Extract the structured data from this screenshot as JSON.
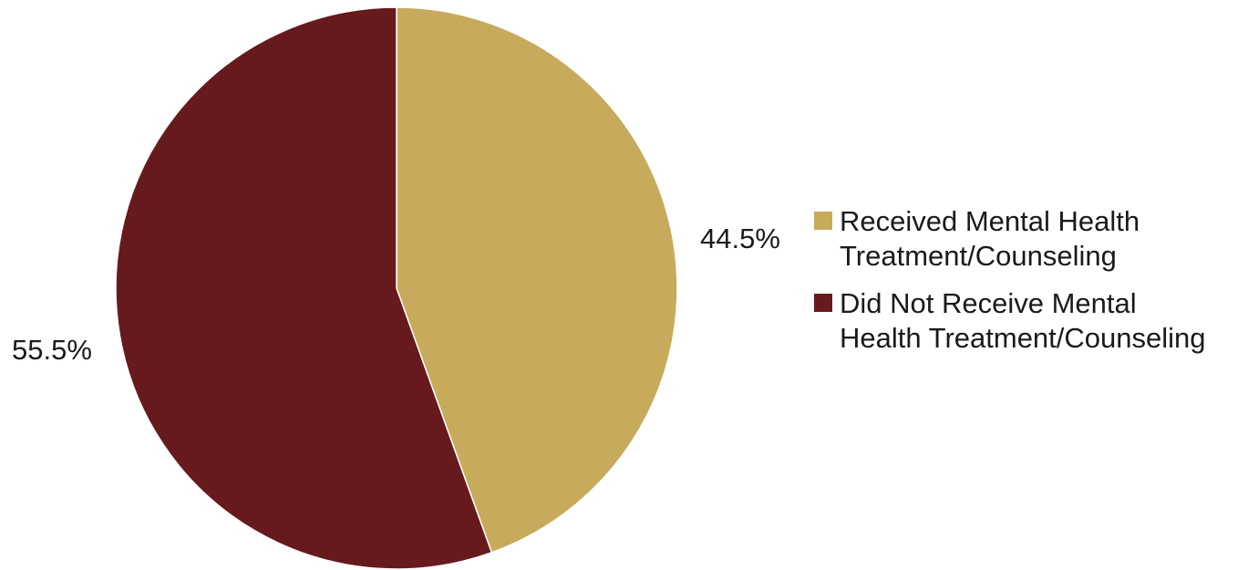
{
  "chart_data": {
    "type": "pie",
    "title": "",
    "slices": [
      {
        "label": "Received Mental Health Treatment/Counseling",
        "value": 44.5,
        "display": "44.5%",
        "color": "#c8aa5c"
      },
      {
        "label": "Did Not Receive Mental Health Treatment/Counseling",
        "value": 55.5,
        "display": "55.5%",
        "color": "#661a1e"
      }
    ],
    "legend": {
      "placement": "right",
      "items": [
        {
          "label": "Received Mental Health\nTreatment/Counseling",
          "color": "#c8aa5c"
        },
        {
          "label": "Did Not Receive Mental\nHealth Treatment/Counseling",
          "color": "#661a1e"
        }
      ]
    }
  }
}
